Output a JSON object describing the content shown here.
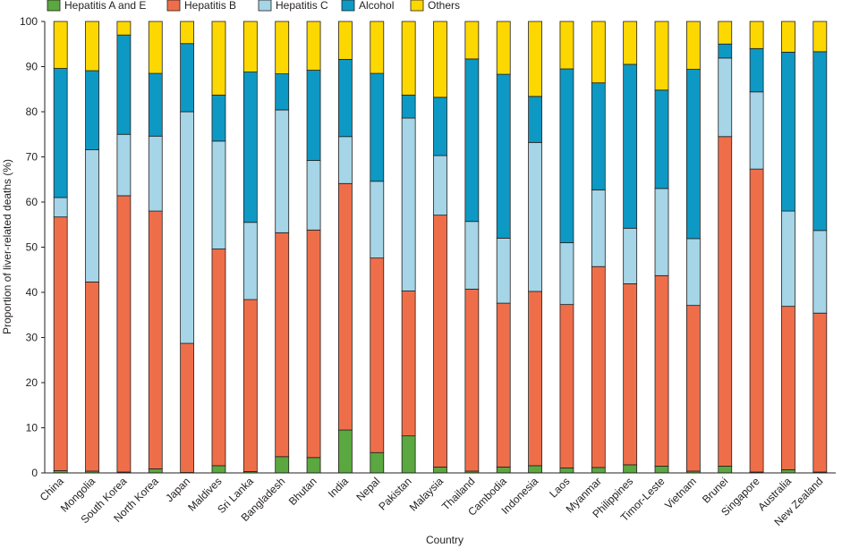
{
  "chart_data": {
    "type": "bar",
    "stacked": true,
    "title": "",
    "xlabel": "Country",
    "ylabel": "Proportion of liver-related deaths (%)",
    "ylim": [
      0,
      100
    ],
    "yticks": [
      0,
      10,
      20,
      30,
      40,
      50,
      60,
      70,
      80,
      90,
      100
    ],
    "grid": false,
    "legend_position": "top-left",
    "categories": [
      "China",
      "Mongolia",
      "South Korea",
      "North Korea",
      "Japan",
      "Maldives",
      "Sri Lanka",
      "Bangladesh",
      "Bhutan",
      "India",
      "Nepal",
      "Pakistan",
      "Malaysia",
      "Thailand",
      "Cambodia",
      "Indonesia",
      "Laos",
      "Myanmar",
      "Philippines",
      "Timor-Leste",
      "Vietnam",
      "Brunei",
      "Singapore",
      "Australia",
      "New Zealand"
    ],
    "series": [
      {
        "name": "Hepatitis A and E",
        "color": "#5aa83f",
        "values": [
          0.5,
          0.4,
          0.2,
          0.9,
          0.1,
          1.6,
          0.3,
          3.6,
          3.4,
          9.5,
          4.5,
          8.2,
          1.3,
          0.4,
          1.3,
          1.6,
          1.1,
          1.2,
          1.8,
          1.5,
          0.4,
          1.5,
          0.2,
          0.7,
          0.2
        ]
      },
      {
        "name": "Hepatitis B",
        "color": "#ef6e4a",
        "values": [
          56.2,
          41.9,
          61.2,
          57.1,
          28.6,
          48.0,
          38.1,
          49.6,
          50.4,
          54.6,
          43.1,
          32.1,
          55.8,
          40.3,
          36.3,
          38.6,
          36.2,
          44.5,
          40.1,
          42.2,
          36.7,
          73.0,
          67.1,
          36.2,
          35.2
        ]
      },
      {
        "name": "Hepatitis C",
        "color": "#a5d5e6",
        "values": [
          4.3,
          29.3,
          13.6,
          16.6,
          51.3,
          23.9,
          17.1,
          27.2,
          15.4,
          10.4,
          17.0,
          38.3,
          13.2,
          15.0,
          14.4,
          33.0,
          13.7,
          17.0,
          12.3,
          19.3,
          14.8,
          17.4,
          17.1,
          21.1,
          18.3
        ]
      },
      {
        "name": "Alcohol",
        "color": "#0d99c4",
        "values": [
          28.6,
          17.5,
          22.0,
          13.9,
          15.1,
          10.2,
          33.3,
          8.0,
          20.0,
          17.1,
          23.9,
          5.1,
          12.9,
          36.0,
          36.3,
          10.2,
          38.5,
          23.7,
          36.3,
          21.8,
          37.5,
          3.1,
          9.6,
          35.2,
          39.6
        ]
      },
      {
        "name": "Others",
        "color": "#fdd800",
        "values": [
          10.4,
          10.9,
          3.0,
          11.5,
          4.9,
          16.3,
          11.2,
          11.6,
          10.8,
          8.4,
          11.5,
          16.3,
          16.8,
          8.3,
          11.7,
          16.6,
          10.5,
          13.6,
          9.5,
          15.2,
          10.6,
          5.0,
          6.0,
          6.8,
          6.7
        ]
      }
    ]
  }
}
